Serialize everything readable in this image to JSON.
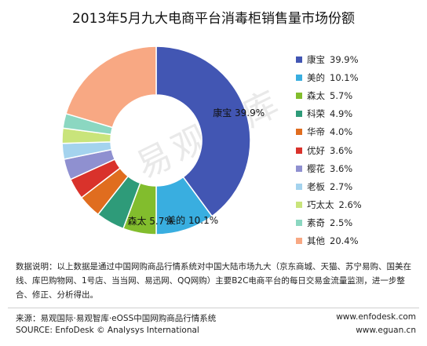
{
  "title": "2013年5月九大电商平台消毒柜销售量市场份额",
  "watermark": "易观智库",
  "chart_data": {
    "type": "pie",
    "donut": true,
    "title": "2013年5月九大电商平台消毒柜销售量市场份额",
    "legend_position": "right",
    "unit": "%",
    "series": [
      {
        "name": "康宝",
        "value": 39.9,
        "label": "39.9%",
        "color": "#4256b3"
      },
      {
        "name": "美的",
        "value": 10.1,
        "label": "10.1%",
        "color": "#39aee0"
      },
      {
        "name": "森太",
        "value": 5.7,
        "label": "5.7%",
        "color": "#82bd2d"
      },
      {
        "name": "科荣",
        "value": 4.9,
        "label": "4.9%",
        "color": "#2e9b79"
      },
      {
        "name": "华帝",
        "value": 4.0,
        "label": "4.0%",
        "color": "#e06d1f"
      },
      {
        "name": "优好",
        "value": 3.6,
        "label": "3.6%",
        "color": "#d9322b"
      },
      {
        "name": "樱花",
        "value": 3.6,
        "label": "3.6%",
        "color": "#8f90d0"
      },
      {
        "name": "老板",
        "value": 2.7,
        "label": "2.7%",
        "color": "#a4d3ee"
      },
      {
        "name": "巧太太",
        "value": 2.6,
        "label": "2.6%",
        "color": "#c9e47b"
      },
      {
        "name": "素奇",
        "value": 2.5,
        "label": "2.5%",
        "color": "#8bd7c1"
      },
      {
        "name": "其他",
        "value": 20.4,
        "label": "20.4%",
        "color": "#f8a883"
      }
    ],
    "data_labels": [
      {
        "name": "康宝",
        "value": "39.9%"
      },
      {
        "name": "美的",
        "value": "10.1%"
      },
      {
        "name": "森太",
        "value": "5.7%"
      }
    ]
  },
  "note": "数据说明：以上数据是通过中国网购商品行情系统对中国大陆市场九大（京东商城、天猫、苏宁易购、国美在线、库巴购物网、1号店、当当网、易迅网、QQ网购）主要B2C电商平台的每日交易金流量监测，进一步整合、修正、分析得出。",
  "source": {
    "line1": "来源：易观国际·易观智库·eOSS中国网购商品行情系统",
    "line2": "SOURCE: EnfoDesk © Analysys International",
    "url1": "www.enfodesk.com",
    "url2": "www.eguan.cn"
  }
}
